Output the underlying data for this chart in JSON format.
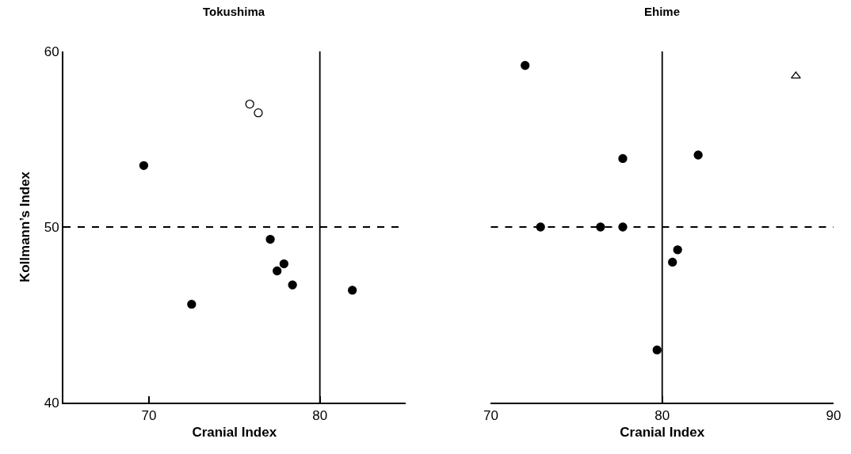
{
  "chart_data": [
    {
      "type": "scatter",
      "title": "Tokushima",
      "xlabel": "Cranial Index",
      "ylabel": "Kollmann’s Index",
      "xlim": [
        65,
        85
      ],
      "xticks": [
        70,
        80
      ],
      "ylim": [
        40,
        60
      ],
      "yticks": [
        40,
        50,
        60
      ],
      "marker": "circle",
      "series": [
        {
          "color": "#000000",
          "x": [
            69.7,
            72.5,
            77.1,
            77.5,
            77.9,
            78.4,
            81.9
          ],
          "values": [
            53.5,
            45.6,
            49.3,
            47.5,
            47.9,
            46.7,
            46.4
          ]
        },
        {
          "color": "#ffffff",
          "x": [
            75.9,
            76.4
          ],
          "values": [
            57.0,
            56.5
          ]
        }
      ],
      "ref_lines": [
        {
          "axis": "x",
          "value": 80,
          "line_style": "solid",
          "color": "#000000"
        },
        {
          "axis": "y",
          "value": 50,
          "line_style": "dashed",
          "color": "#000000"
        }
      ]
    },
    {
      "type": "scatter",
      "title": "Ehime",
      "xlabel": "Cranial Index",
      "xlim": [
        70,
        90
      ],
      "xticks": [
        70,
        80,
        90
      ],
      "ylim": [
        40,
        60
      ],
      "tick_labels": "x",
      "marker": "circle",
      "series": [
        {
          "color": "#000000",
          "x": [
            72.0,
            72.9,
            76.4,
            77.7,
            77.7,
            82.1,
            80.9,
            80.6,
            79.7
          ],
          "values": [
            59.2,
            50.0,
            50.0,
            50.0,
            53.9,
            54.1,
            48.7,
            48.0,
            43.0
          ]
        },
        {
          "color": "#ffffff",
          "marker": "triangle",
          "x": [
            87.8
          ],
          "values": [
            58.6
          ]
        }
      ],
      "ref_lines": [
        {
          "axis": "x",
          "value": 80,
          "line_style": "solid",
          "color": "#000000"
        },
        {
          "axis": "y",
          "value": 50,
          "line_style": "dashed",
          "color": "#000000"
        }
      ]
    }
  ]
}
